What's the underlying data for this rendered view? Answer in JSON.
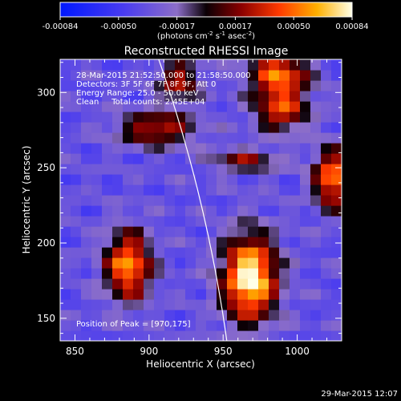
{
  "chart_data": {
    "type": "heatmap",
    "title": "Reconstructed RHESSI Image",
    "xlabel": "Heliocentric X (arcsec)",
    "ylabel": "Heliocentric Y (arcsec)",
    "xlim": [
      840,
      1030
    ],
    "ylim": [
      135,
      322
    ],
    "xticks": [
      "850",
      "900",
      "950",
      "1000"
    ],
    "yticks": [
      "150",
      "200",
      "250",
      "300"
    ],
    "colorbar": {
      "range": [
        -0.00084,
        0.00084
      ],
      "ticks": [
        "-0.00084",
        "-0.00050",
        "-0.00017",
        "0.00017",
        "0.00050",
        "0.00084"
      ],
      "units": "(photons cm",
      "units_exp1": "-2",
      "units_mid": " s",
      "units_exp2": "-1",
      "units_end": " asec",
      "units_exp3": "-2",
      "units_close": ")"
    },
    "annotations": [
      "28-Mar-2015 21:52:50.000 to 21:58:50.000",
      "Detectors: 3F 5F 6F 7F 8F 9F, Att 0",
      "Energy Range: 25.0 - 50.0 keV",
      "Clean     Total counts: 2.45E+04"
    ],
    "peak_label": "Position of Peak = [970,175]",
    "peak": [
      970,
      175
    ],
    "sources": [
      {
        "x": 968,
        "y": 177,
        "amp": 1.0,
        "sx": 13,
        "sy": 20
      },
      {
        "x": 886,
        "y": 185,
        "amp": 0.78,
        "sx": 11,
        "sy": 16
      },
      {
        "x": 988,
        "y": 310,
        "amp": 0.72,
        "sx": 14,
        "sy": 14
      },
      {
        "x": 1024,
        "y": 243,
        "amp": 0.75,
        "sx": 9,
        "sy": 14
      },
      {
        "x": 905,
        "y": 276,
        "amp": 0.55,
        "sx": 18,
        "sy": 8
      },
      {
        "x": 920,
        "y": 308,
        "amp": 0.5,
        "sx": 10,
        "sy": 10
      },
      {
        "x": 965,
        "y": 255,
        "amp": 0.4,
        "sx": 16,
        "sy": 6
      },
      {
        "x": 990,
        "y": 285,
        "amp": 0.45,
        "sx": 12,
        "sy": 8
      }
    ]
  },
  "footer_date": "29-Mar-2015 12:07",
  "colors": {
    "background": "#000000",
    "limb": "#ffffff"
  }
}
